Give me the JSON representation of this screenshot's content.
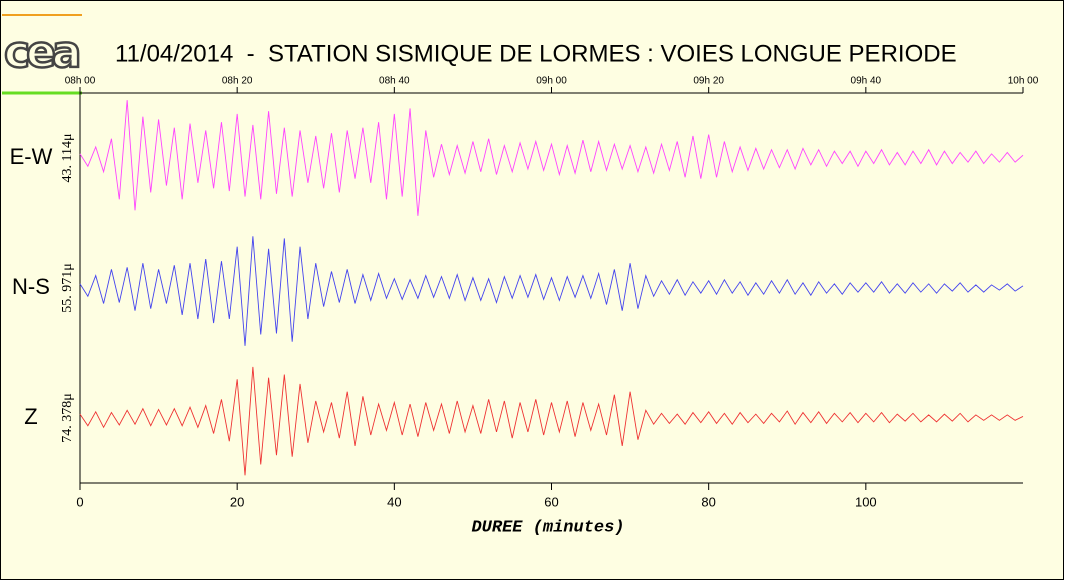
{
  "chart_data": {
    "type": "line",
    "title": "11/04/2014  -  STATION SISMIQUE DE LORMES : VOIES LONGUE PERIODE",
    "logo": "cea",
    "xlabel": "DUREE (minutes)",
    "xlim": [
      0,
      120
    ],
    "xticks": [
      0,
      20,
      40,
      60,
      80,
      100
    ],
    "x2ticks": [
      {
        "value": 0,
        "label": "08h 00"
      },
      {
        "value": 20,
        "label": "08h 20"
      },
      {
        "value": 40,
        "label": "08h 40"
      },
      {
        "value": 60,
        "label": "09h 00"
      },
      {
        "value": 80,
        "label": "09h 20"
      },
      {
        "value": 100,
        "label": "09h 40"
      },
      {
        "value": 120,
        "label": "10h 00"
      }
    ],
    "x": [
      0,
      1,
      2,
      3,
      4,
      5,
      6,
      7,
      8,
      9,
      10,
      11,
      12,
      13,
      14,
      15,
      16,
      17,
      18,
      19,
      20,
      21,
      22,
      23,
      24,
      25,
      26,
      27,
      28,
      29,
      30,
      31,
      32,
      33,
      34,
      35,
      36,
      37,
      38,
      39,
      40,
      41,
      42,
      43,
      44,
      45,
      46,
      47,
      48,
      49,
      50,
      51,
      52,
      53,
      54,
      55,
      56,
      57,
      58,
      59,
      60,
      61,
      62,
      63,
      64,
      65,
      66,
      67,
      68,
      69,
      70,
      71,
      72,
      73,
      74,
      75,
      76,
      77,
      78,
      79,
      80,
      81,
      82,
      83,
      84,
      85,
      86,
      87,
      88,
      89,
      90,
      91,
      92,
      93,
      94,
      95,
      96,
      97,
      98,
      99,
      100,
      101,
      102,
      103,
      104,
      105,
      106,
      107,
      108,
      109,
      110,
      111,
      112,
      113,
      114,
      115,
      116,
      117,
      118,
      119,
      120
    ],
    "series": [
      {
        "name": "E-W",
        "scale_label": "43. 114μ",
        "color": "#ff44ff",
        "ylim": [
          -45,
          45
        ],
        "values": [
          3,
          -6,
          8,
          -10,
          14,
          -30,
          42,
          -38,
          30,
          -25,
          28,
          -20,
          22,
          -30,
          25,
          -18,
          20,
          -22,
          26,
          -24,
          32,
          -28,
          24,
          -30,
          34,
          -26,
          22,
          -28,
          20,
          -18,
          16,
          -22,
          18,
          -25,
          20,
          -15,
          22,
          -18,
          26,
          -30,
          32,
          -28,
          36,
          -42,
          20,
          -14,
          10,
          -12,
          9,
          -11,
          12,
          -10,
          14,
          -12,
          9,
          -10,
          11,
          -8,
          12,
          -9,
          10,
          -12,
          9,
          -11,
          13,
          -10,
          12,
          -9,
          10,
          -8,
          9,
          -10,
          8,
          -11,
          10,
          -9,
          12,
          -14,
          16,
          -15,
          17,
          -14,
          12,
          -10,
          8,
          -9,
          7,
          -8,
          6,
          -7,
          6,
          -8,
          7,
          -5,
          6,
          -6,
          5,
          -4,
          5,
          -6,
          5,
          -4,
          6,
          -5,
          4,
          -5,
          5,
          -4,
          6,
          -5,
          5,
          -4,
          4,
          -3,
          5,
          -4,
          3,
          -3,
          4,
          -3,
          2
        ]
      },
      {
        "name": "N-S",
        "scale_label": "55. 971μ",
        "color": "#4444ee",
        "ylim": [
          -60,
          60
        ],
        "values": [
          4,
          -8,
          12,
          -15,
          18,
          -14,
          20,
          -22,
          24,
          -20,
          18,
          -15,
          22,
          -26,
          24,
          -30,
          28,
          -34,
          26,
          -30,
          40,
          -56,
          50,
          -45,
          38,
          -44,
          48,
          -52,
          40,
          -30,
          24,
          -18,
          16,
          -14,
          18,
          -15,
          13,
          -12,
          14,
          -10,
          9,
          -11,
          8,
          -10,
          12,
          -9,
          11,
          -10,
          13,
          -12,
          10,
          -12,
          9,
          -14,
          11,
          -10,
          12,
          -9,
          13,
          -11,
          10,
          -12,
          11,
          -9,
          12,
          -10,
          14,
          -16,
          18,
          -22,
          24,
          -20,
          12,
          -8,
          7,
          -6,
          8,
          -7,
          6,
          -5,
          7,
          -6,
          8,
          -5,
          6,
          -7,
          5,
          -6,
          7,
          -5,
          8,
          -6,
          5,
          -7,
          6,
          -5,
          4,
          -6,
          5,
          -4,
          5,
          -4,
          6,
          -5,
          4,
          -5,
          5,
          -4,
          4,
          -5,
          4,
          -3,
          5,
          -4,
          3,
          -4,
          3,
          -2,
          4,
          -3,
          2
        ]
      },
      {
        "name": "Z",
        "scale_label": "74. 378μ",
        "color": "#ee3333",
        "ylim": [
          -80,
          80
        ],
        "values": [
          5,
          -10,
          8,
          -12,
          7,
          -9,
          10,
          -8,
          12,
          -10,
          11,
          -9,
          12,
          -10,
          14,
          -12,
          16,
          -20,
          24,
          -30,
          50,
          -74,
          66,
          -60,
          52,
          -48,
          56,
          -50,
          44,
          -32,
          22,
          -18,
          20,
          -26,
          34,
          -36,
          28,
          -22,
          18,
          -16,
          20,
          -22,
          18,
          -24,
          20,
          -16,
          18,
          -20,
          22,
          -18,
          16,
          -20,
          24,
          -18,
          22,
          -26,
          20,
          -18,
          24,
          -22,
          20,
          -18,
          22,
          -24,
          20,
          -16,
          18,
          -22,
          30,
          -36,
          34,
          -28,
          10,
          -8,
          6,
          -7,
          5,
          -8,
          7,
          -6,
          8,
          -7,
          6,
          -8,
          7,
          -6,
          5,
          -7,
          6,
          -5,
          9,
          -8,
          7,
          -6,
          8,
          -7,
          6,
          -5,
          7,
          -6,
          6,
          -5,
          7,
          -6,
          5,
          -4,
          6,
          -5,
          4,
          -5,
          5,
          -4,
          6,
          -5,
          4,
          -3,
          4,
          -3,
          4,
          -3,
          2
        ]
      }
    ]
  }
}
